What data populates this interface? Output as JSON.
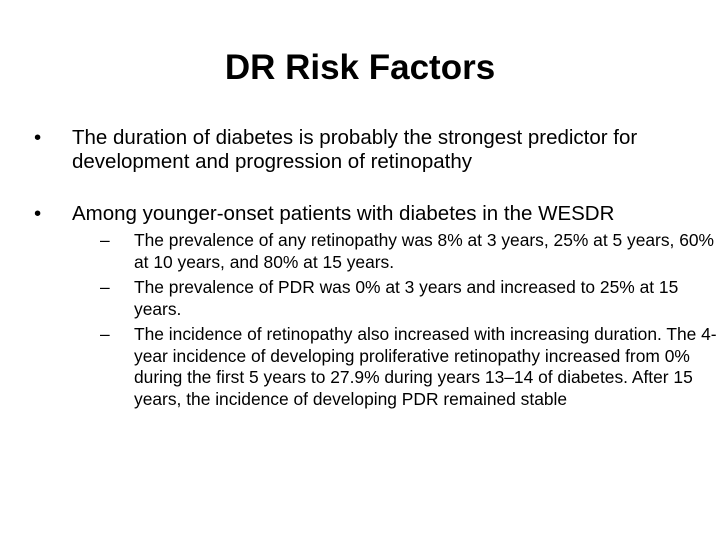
{
  "slide": {
    "title": "DR Risk Factors",
    "bullet_marker": "•",
    "sub_marker": "–",
    "bullets": [
      {
        "text": "The duration of diabetes is probably the strongest predictor for development and progression of retinopathy"
      },
      {
        "text": "Among younger-onset patients with diabetes in the WESDR",
        "subs": [
          "The prevalence of any retinopathy was 8% at 3 years, 25% at 5 years, 60% at 10 years, and 80% at 15 years.",
          "The prevalence of PDR was 0% at 3 years and increased to 25% at 15 years.",
          "The incidence of retinopathy also increased with increasing duration. The 4-year incidence of developing proliferative retinopathy increased from 0% during the first 5 years to 27.9% during years 13–14 of diabetes. After 15 years, the incidence of developing PDR remained stable"
        ]
      }
    ]
  }
}
